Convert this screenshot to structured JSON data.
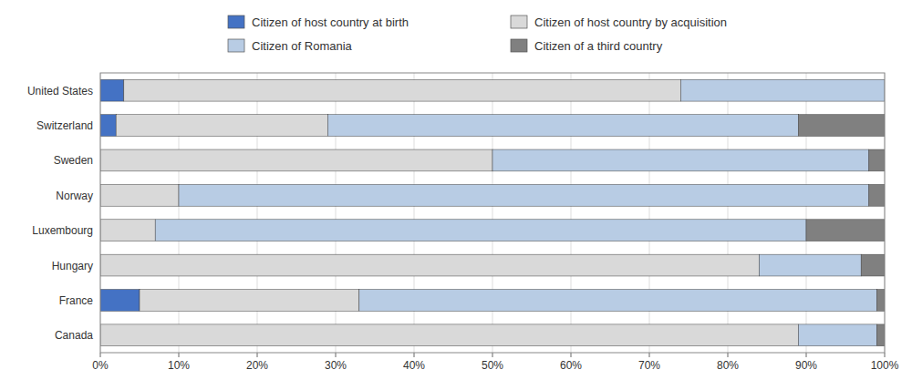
{
  "chart_data": {
    "type": "bar",
    "orientation": "horizontal",
    "stacked": true,
    "categories": [
      "United States",
      "Switzerland",
      "Sweden",
      "Norway",
      "Luxembourg",
      "Hungary",
      "France",
      "Canada"
    ],
    "series": [
      {
        "name": "Citizen of host country at birth",
        "color": "#4472C4",
        "values": [
          3,
          2,
          0,
          0,
          0,
          0,
          5,
          0
        ]
      },
      {
        "name": "Citizen of host country by acquisition",
        "color": "#D9D9D9",
        "values": [
          71,
          27,
          50,
          10,
          7,
          84,
          28,
          89
        ]
      },
      {
        "name": "Citizen of Romania",
        "color": "#B8CCE4",
        "values": [
          26,
          60,
          48,
          88,
          83,
          13,
          66,
          10
        ]
      },
      {
        "name": "Citizen of a third country",
        "color": "#808080",
        "values": [
          0,
          11,
          2,
          2,
          10,
          3,
          1,
          1
        ]
      }
    ],
    "xlim": [
      0,
      100
    ],
    "xticks": [
      {
        "value": 0,
        "label": "0%"
      },
      {
        "value": 10,
        "label": "10%"
      },
      {
        "value": 20,
        "label": "20%"
      },
      {
        "value": 30,
        "label": "30%"
      },
      {
        "value": 40,
        "label": "40%"
      },
      {
        "value": 50,
        "label": "50%"
      },
      {
        "value": 60,
        "label": "60%"
      },
      {
        "value": 70,
        "label": "70%"
      },
      {
        "value": 80,
        "label": "80%"
      },
      {
        "value": 90,
        "label": "90%"
      },
      {
        "value": 100,
        "label": "100%"
      }
    ],
    "grid": true
  }
}
